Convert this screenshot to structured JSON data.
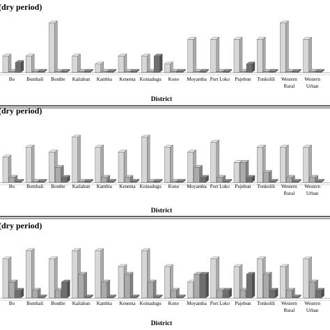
{
  "chart_data": [
    {
      "type": "bar",
      "title": "(dry period)",
      "xlabel": "District",
      "ylabel": "",
      "ylim": [
        0,
        100
      ],
      "grid": false,
      "categories": [
        "Bo",
        "Bombali",
        "Bonthe",
        "Kailahun",
        "Kambia",
        "Kenema",
        "Koinadugu",
        "Kono",
        "Moyamba",
        "Port Loko",
        "Pujehun",
        "Tonkolili",
        "Western Rural",
        "Western Urban"
      ],
      "series": [
        {
          "values": [
            33,
            33,
            100,
            33,
            17,
            33,
            33,
            17,
            67,
            67,
            67,
            67,
            100,
            67
          ]
        },
        {
          "values": [
            0,
            0,
            0,
            0,
            0,
            0,
            0,
            0,
            0,
            0,
            0,
            0,
            0,
            0
          ]
        },
        {
          "values": [
            20,
            0,
            0,
            0,
            0,
            0,
            33,
            0,
            0,
            0,
            17,
            0,
            0,
            0
          ]
        }
      ]
    },
    {
      "type": "bar",
      "title": "(dry period)",
      "xlabel": "District",
      "ylabel": "",
      "ylim": [
        0,
        100
      ],
      "grid": false,
      "categories": [
        "Bo",
        "Bombali",
        "Bonthe",
        "Kailahun",
        "Kambia",
        "Kenema",
        "Koinadugu",
        "Kono",
        "Moyamba",
        "Port Loko",
        "Pujehun",
        "Tonkolili",
        "Western Rural",
        "Western Urban"
      ],
      "series": [
        {
          "values": [
            56,
            78,
            67,
            100,
            78,
            67,
            100,
            78,
            67,
            89,
            44,
            78,
            78,
            78
          ]
        },
        {
          "values": [
            11,
            0,
            33,
            0,
            11,
            11,
            0,
            0,
            33,
            11,
            44,
            22,
            11,
            11
          ]
        },
        {
          "values": [
            0,
            0,
            11,
            0,
            0,
            0,
            0,
            0,
            11,
            0,
            11,
            0,
            0,
            0
          ]
        }
      ]
    },
    {
      "type": "bar",
      "title": "(dry period)",
      "xlabel": "District",
      "ylabel": "",
      "ylim": [
        0,
        100
      ],
      "grid": false,
      "categories": [
        "Bo",
        "Bombali",
        "Bonthe",
        "Kailahun",
        "Kambia",
        "Kenema",
        "Koinadugu",
        "Kono",
        "Moyamba",
        "Port Loko",
        "Pujehun",
        "Tonkolili",
        "Western Rural",
        "Western Urban"
      ],
      "series": [
        {
          "values": [
            71,
            86,
            71,
            86,
            86,
            57,
            86,
            57,
            29,
            71,
            57,
            71,
            57,
            71
          ]
        },
        {
          "values": [
            29,
            14,
            14,
            43,
            29,
            43,
            29,
            14,
            43,
            14,
            14,
            43,
            14,
            29
          ]
        },
        {
          "values": [
            14,
            0,
            29,
            0,
            0,
            0,
            0,
            0,
            43,
            14,
            43,
            14,
            0,
            14
          ]
        }
      ]
    }
  ]
}
